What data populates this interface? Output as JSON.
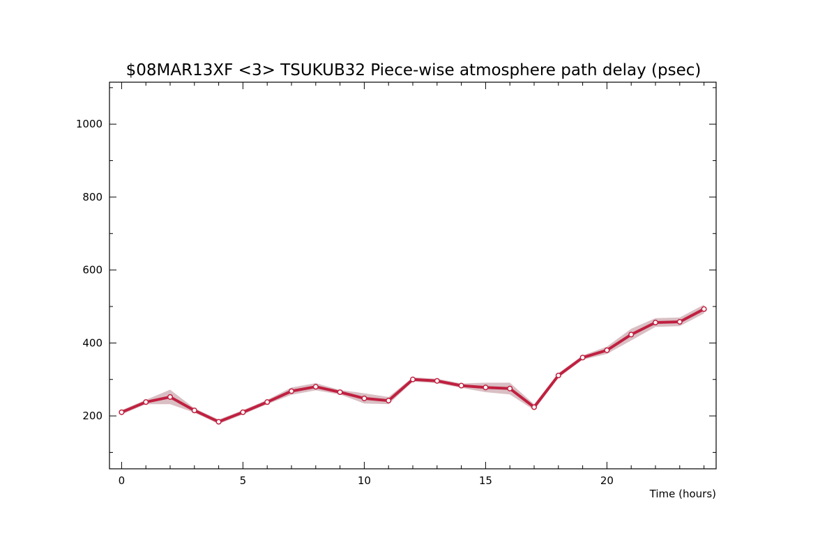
{
  "chart_data": {
    "type": "line",
    "title": "$08MAR13XF <3>  TSUKUB32  Piece-wise atmosphere path delay (psec)",
    "xlabel": "Time (hours)",
    "ylabel": "",
    "xlim": [
      -0.5,
      24.5
    ],
    "ylim": [
      55,
      1115
    ],
    "x_ticks": [
      0,
      5,
      10,
      15,
      20
    ],
    "x_tick_labels": [
      "0",
      "5",
      "10",
      "15",
      "20"
    ],
    "y_ticks": [
      200,
      400,
      600,
      800,
      1000
    ],
    "y_tick_labels": [
      "200",
      "400",
      "600",
      "800",
      "1000"
    ],
    "grid": false,
    "colors": {
      "line": "#c02040",
      "band": "#d9bfc4",
      "marker_fill": "#ffffff"
    },
    "series": [
      {
        "x": [
          0,
          1,
          2,
          3,
          4,
          5,
          6,
          7,
          8,
          9,
          10,
          11,
          12,
          13,
          14,
          15,
          16,
          17,
          18,
          19,
          20,
          21,
          22,
          23,
          24
        ],
        "values": [
          210,
          238,
          252,
          215,
          184,
          210,
          238,
          268,
          280,
          265,
          248,
          242,
          300,
          296,
          283,
          278,
          275,
          224,
          311,
          360,
          380,
          423,
          456,
          458,
          493
        ],
        "uncertainty": [
          6,
          6,
          20,
          6,
          6,
          6,
          6,
          10,
          10,
          6,
          14,
          10,
          6,
          6,
          6,
          13,
          16,
          8,
          6,
          6,
          10,
          16,
          12,
          12,
          12
        ]
      }
    ]
  }
}
